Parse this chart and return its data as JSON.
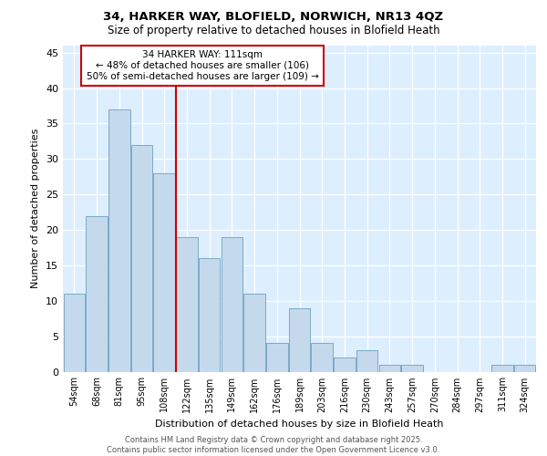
{
  "title1": "34, HARKER WAY, BLOFIELD, NORWICH, NR13 4QZ",
  "title2": "Size of property relative to detached houses in Blofield Heath",
  "xlabel": "Distribution of detached houses by size in Blofield Heath",
  "ylabel": "Number of detached properties",
  "categories": [
    "54sqm",
    "68sqm",
    "81sqm",
    "95sqm",
    "108sqm",
    "122sqm",
    "135sqm",
    "149sqm",
    "162sqm",
    "176sqm",
    "189sqm",
    "203sqm",
    "216sqm",
    "230sqm",
    "243sqm",
    "257sqm",
    "270sqm",
    "284sqm",
    "297sqm",
    "311sqm",
    "324sqm"
  ],
  "values": [
    11,
    22,
    37,
    32,
    28,
    19,
    16,
    19,
    11,
    4,
    9,
    4,
    2,
    3,
    1,
    1,
    0,
    0,
    0,
    1,
    1
  ],
  "bar_color": "#c5d9ec",
  "bar_edgecolor": "#7aaac8",
  "vline_x_index": 4,
  "vline_color": "#cc0000",
  "annotation_text": "34 HARKER WAY: 111sqm\n← 48% of detached houses are smaller (106)\n50% of semi-detached houses are larger (109) →",
  "annotation_box_color": "#ffffff",
  "annotation_box_edgecolor": "#cc0000",
  "ylim": [
    0,
    46
  ],
  "yticks": [
    0,
    5,
    10,
    15,
    20,
    25,
    30,
    35,
    40,
    45
  ],
  "footer": "Contains HM Land Registry data © Crown copyright and database right 2025.\nContains public sector information licensed under the Open Government Licence v3.0.",
  "fig_bg_color": "#ffffff",
  "plot_bg_color": "#ddeeff"
}
